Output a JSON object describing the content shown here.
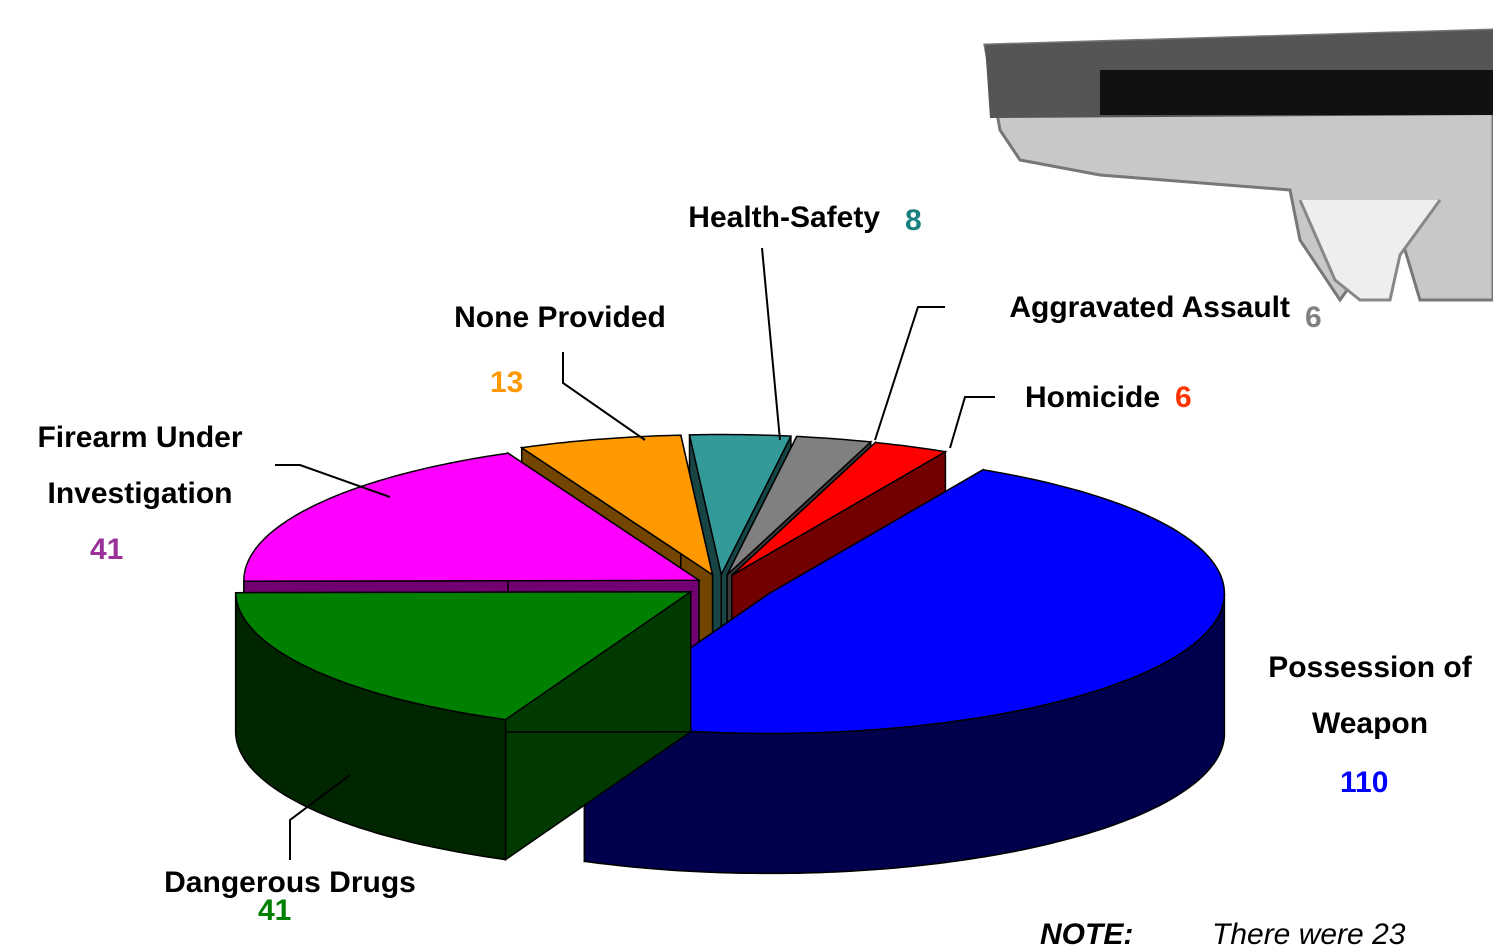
{
  "chart_data": {
    "type": "pie",
    "categories": [
      "Possession of Weapon",
      "Dangerous Drugs",
      "Firearm Under Investigation",
      "None Provided",
      "Health-Safety",
      "Aggravated Assault",
      "Homicide"
    ],
    "values": [
      110,
      41,
      41,
      13,
      8,
      6,
      6
    ],
    "colors": [
      "#0000ff",
      "#008000",
      "#ff00ff",
      "#ff9900",
      "#339999",
      "#808080",
      "#ff0000"
    ],
    "label_colors": [
      "#0000ff",
      "#008000",
      "#993399",
      "#ff9900",
      "#1a8080",
      "#808080",
      "#ff3300"
    ],
    "note": {
      "label": "NOTE:",
      "text": "There were 23"
    }
  }
}
